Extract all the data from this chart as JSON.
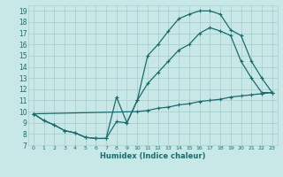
{
  "xlabel": "Humidex (Indice chaleur)",
  "bg_color": "#c8e8e8",
  "grid_color": "#a8d0d0",
  "line_color": "#1a6b6b",
  "xlim": [
    -0.5,
    23.5
  ],
  "ylim": [
    7,
    19.5
  ],
  "xticks": [
    0,
    1,
    2,
    3,
    4,
    5,
    6,
    7,
    8,
    9,
    10,
    11,
    12,
    13,
    14,
    15,
    16,
    17,
    18,
    19,
    20,
    21,
    22,
    23
  ],
  "yticks": [
    7,
    8,
    9,
    10,
    11,
    12,
    13,
    14,
    15,
    16,
    17,
    18,
    19
  ],
  "curve1_x": [
    0,
    1,
    2,
    3,
    4,
    5,
    6,
    7,
    8,
    9,
    10,
    11,
    12,
    13,
    14,
    15,
    16,
    17,
    18,
    19,
    20,
    21,
    22,
    23
  ],
  "curve1_y": [
    9.8,
    9.2,
    8.8,
    8.3,
    8.1,
    7.7,
    7.6,
    7.6,
    9.1,
    9.0,
    11.0,
    15.0,
    16.0,
    17.2,
    18.3,
    18.7,
    19.0,
    19.0,
    18.7,
    17.3,
    16.8,
    14.5,
    13.0,
    11.7
  ],
  "curve2_x": [
    0,
    1,
    2,
    3,
    4,
    5,
    6,
    7,
    8,
    9,
    10,
    11,
    12,
    13,
    14,
    15,
    16,
    17,
    18,
    19,
    20,
    21,
    22,
    23
  ],
  "curve2_y": [
    9.8,
    9.2,
    8.8,
    8.3,
    8.1,
    7.7,
    7.6,
    7.6,
    11.3,
    9.0,
    11.0,
    12.5,
    13.5,
    14.5,
    15.5,
    16.0,
    17.0,
    17.5,
    17.2,
    16.8,
    14.5,
    13.0,
    11.7,
    11.7
  ],
  "curve3_x": [
    0,
    10,
    11,
    12,
    13,
    14,
    15,
    16,
    17,
    18,
    19,
    20,
    21,
    22,
    23
  ],
  "curve3_y": [
    9.8,
    10.0,
    10.1,
    10.3,
    10.4,
    10.6,
    10.7,
    10.9,
    11.0,
    11.1,
    11.3,
    11.4,
    11.5,
    11.6,
    11.7
  ]
}
